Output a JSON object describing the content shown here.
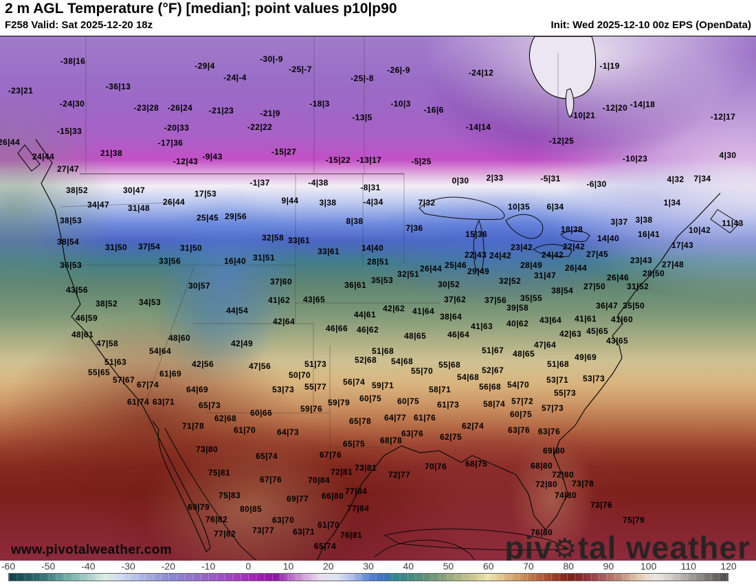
{
  "header": {
    "title": "2 m AGL Temperature (°F) [median]; point values p10|p90",
    "valid": "F258 Valid: Sat 2025-12-20 18z",
    "init": "Init: Wed 2025-12-10 00z EPS (OpenData)"
  },
  "watermark": {
    "site": "www.pivotalweather.com",
    "brand_p1": "piv",
    "brand_p2": "tal weather"
  },
  "colorbar": {
    "ticks": [
      "-60",
      "-50",
      "-40",
      "-30",
      "-20",
      "-10",
      "0",
      "10",
      "20",
      "30",
      "40",
      "50",
      "60",
      "70",
      "80",
      "90",
      "100",
      "110",
      "120"
    ],
    "stops": [
      [
        -60,
        "#0e3f4a"
      ],
      [
        -52,
        "#2e6e74"
      ],
      [
        -46,
        "#6aa8a4"
      ],
      [
        -40,
        "#a7d0c9"
      ],
      [
        -36,
        "#dcebe4"
      ],
      [
        -32,
        "#cfd9ee"
      ],
      [
        -26,
        "#a9b2e3"
      ],
      [
        -20,
        "#8b8ad5"
      ],
      [
        -14,
        "#9272cc"
      ],
      [
        -8,
        "#9c56c5"
      ],
      [
        -2,
        "#a637bf"
      ],
      [
        3,
        "#a21cb4"
      ],
      [
        7,
        "#8f14a6"
      ],
      [
        10,
        "#b45fc6"
      ],
      [
        14,
        "#d3a5dc"
      ],
      [
        18,
        "#e9dced"
      ],
      [
        22,
        "#dfe3f1"
      ],
      [
        26,
        "#aebfe8"
      ],
      [
        30,
        "#5b82d5"
      ],
      [
        34,
        "#3a6fc3"
      ],
      [
        36,
        "#2f8496"
      ],
      [
        40,
        "#3d8a80"
      ],
      [
        44,
        "#5b9077"
      ],
      [
        48,
        "#7f9d78"
      ],
      [
        52,
        "#a8b183"
      ],
      [
        56,
        "#c9c68e"
      ],
      [
        60,
        "#ece4ab"
      ],
      [
        63,
        "#e3c88f"
      ],
      [
        66,
        "#d6a96f"
      ],
      [
        69,
        "#c98a55"
      ],
      [
        72,
        "#b96a40"
      ],
      [
        75,
        "#a84c30"
      ],
      [
        78,
        "#942f22"
      ],
      [
        81,
        "#7c1f18"
      ],
      [
        84,
        "#8c2f33"
      ],
      [
        87,
        "#a04a52"
      ],
      [
        90,
        "#b06a62"
      ],
      [
        93,
        "#c08a78"
      ],
      [
        96,
        "#d8b49c"
      ],
      [
        99,
        "#e8d6c2"
      ],
      [
        102,
        "#eae6e0"
      ],
      [
        106,
        "#cfcbc6"
      ],
      [
        110,
        "#a8a4a0"
      ],
      [
        115,
        "#7a7672"
      ],
      [
        120,
        "#4e4a48"
      ]
    ]
  },
  "map": {
    "point_values": [
      [
        106,
        88,
        "-38|16"
      ],
      [
        30,
        131,
        "-23|21"
      ],
      [
        172,
        125,
        "-36|13"
      ],
      [
        105,
        150,
        "-24|30"
      ],
      [
        213,
        156,
        "-23|28"
      ],
      [
        262,
        156,
        "-26|24"
      ],
      [
        101,
        190,
        "-15|33"
      ],
      [
        257,
        185,
        "-20|33"
      ],
      [
        248,
        207,
        "-17|36"
      ],
      [
        13,
        206,
        "26|44"
      ],
      [
        162,
        222,
        "21|38"
      ],
      [
        63,
        227,
        "24|44"
      ],
      [
        270,
        234,
        "-12|43"
      ],
      [
        99,
        245,
        "27|47"
      ],
      [
        298,
        95,
        "-29|4"
      ],
      [
        395,
        85,
        "-30|-9"
      ],
      [
        342,
        112,
        "-24|-4"
      ],
      [
        437,
        100,
        "-25|-7"
      ],
      [
        527,
        113,
        "-25|-8"
      ],
      [
        465,
        150,
        "-18|3"
      ],
      [
        322,
        160,
        "-21|23"
      ],
      [
        393,
        164,
        "-21|9"
      ],
      [
        527,
        170,
        "-13|5"
      ],
      [
        378,
        184,
        "-22|22"
      ],
      [
        413,
        220,
        "-15|27"
      ],
      [
        309,
        227,
        "-9|43"
      ],
      [
        492,
        232,
        "-15|22"
      ],
      [
        537,
        232,
        "-13|17"
      ],
      [
        580,
        101,
        "-26|-9"
      ],
      [
        700,
        105,
        "-24|12"
      ],
      [
        583,
        150,
        "-10|3"
      ],
      [
        631,
        159,
        "-16|6"
      ],
      [
        696,
        184,
        "-14|14"
      ],
      [
        817,
        204,
        "-12|25"
      ],
      [
        613,
        234,
        "-5|25"
      ],
      [
        887,
        95,
        "-1|19"
      ],
      [
        848,
        167,
        "-10|21"
      ],
      [
        895,
        156,
        "-12|20"
      ],
      [
        935,
        151,
        "-14|18"
      ],
      [
        1052,
        169,
        "-12|17"
      ],
      [
        924,
        230,
        "-10|23"
      ],
      [
        1059,
        225,
        "4|30"
      ],
      [
        112,
        276,
        "38|52"
      ],
      [
        195,
        276,
        "30|47"
      ],
      [
        143,
        297,
        "34|47"
      ],
      [
        202,
        302,
        "31|48"
      ],
      [
        253,
        293,
        "26|44"
      ],
      [
        103,
        320,
        "38|53"
      ],
      [
        99,
        351,
        "38|54"
      ],
      [
        169,
        359,
        "31|50"
      ],
      [
        217,
        358,
        "37|54"
      ],
      [
        278,
        360,
        "31|50"
      ],
      [
        247,
        379,
        "33|56"
      ],
      [
        103,
        385,
        "36|53"
      ],
      [
        112,
        421,
        "43|56"
      ],
      [
        155,
        441,
        "38|52"
      ],
      [
        218,
        439,
        "34|53"
      ],
      [
        290,
        415,
        "30|57"
      ],
      [
        299,
        281,
        "17|53"
      ],
      [
        378,
        265,
        "-1|37"
      ],
      [
        463,
        265,
        "-4|38"
      ],
      [
        539,
        272,
        "-8|31"
      ],
      [
        422,
        291,
        "9|44"
      ],
      [
        477,
        294,
        "3|38"
      ],
      [
        543,
        293,
        "-4|34"
      ],
      [
        302,
        316,
        "25|45"
      ],
      [
        343,
        314,
        "29|56"
      ],
      [
        516,
        321,
        "8|38"
      ],
      [
        397,
        345,
        "32|58"
      ],
      [
        435,
        349,
        "33|61"
      ],
      [
        478,
        365,
        "33|61"
      ],
      [
        542,
        360,
        "14|40"
      ],
      [
        384,
        374,
        "31|51"
      ],
      [
        342,
        379,
        "16|40"
      ],
      [
        550,
        380,
        "28|51"
      ],
      [
        409,
        409,
        "37|60"
      ],
      [
        406,
        436,
        "41|62"
      ],
      [
        457,
        435,
        "43|65"
      ],
      [
        517,
        414,
        "36|61"
      ],
      [
        556,
        407,
        "35|53"
      ],
      [
        345,
        451,
        "44|54"
      ],
      [
        670,
        262,
        "0|30"
      ],
      [
        720,
        258,
        "2|33"
      ],
      [
        801,
        259,
        "-5|31"
      ],
      [
        621,
        294,
        "7|32"
      ],
      [
        755,
        300,
        "10|35"
      ],
      [
        808,
        300,
        "6|34"
      ],
      [
        603,
        331,
        "7|36"
      ],
      [
        693,
        340,
        "15|36"
      ],
      [
        832,
        333,
        "18|38"
      ],
      [
        759,
        359,
        "23|42"
      ],
      [
        835,
        358,
        "22|42"
      ],
      [
        692,
        370,
        "22|43"
      ],
      [
        728,
        371,
        "24|42"
      ],
      [
        804,
        370,
        "24|42"
      ],
      [
        773,
        385,
        "28|49"
      ],
      [
        663,
        385,
        "25|46"
      ],
      [
        627,
        390,
        "26|44"
      ],
      [
        696,
        394,
        "29|49"
      ],
      [
        594,
        398,
        "32|51"
      ],
      [
        793,
        400,
        "31|47"
      ],
      [
        838,
        389,
        "26|44"
      ],
      [
        742,
        408,
        "32|52"
      ],
      [
        653,
        413,
        "30|52"
      ],
      [
        662,
        435,
        "37|62"
      ],
      [
        721,
        436,
        "37|56"
      ],
      [
        773,
        433,
        "35|55"
      ],
      [
        818,
        422,
        "38|54"
      ],
      [
        753,
        447,
        "39|58"
      ],
      [
        573,
        448,
        "42|62"
      ],
      [
        616,
        452,
        "41|64"
      ],
      [
        868,
        267,
        "-6|30"
      ],
      [
        983,
        260,
        "4|32"
      ],
      [
        1022,
        259,
        "7|34"
      ],
      [
        978,
        294,
        "1|34"
      ],
      [
        901,
        322,
        "3|37"
      ],
      [
        937,
        319,
        "3|38"
      ],
      [
        1066,
        324,
        "11|43"
      ],
      [
        1018,
        334,
        "10|42"
      ],
      [
        944,
        340,
        "16|41"
      ],
      [
        885,
        346,
        "14|40"
      ],
      [
        993,
        356,
        "17|43"
      ],
      [
        869,
        369,
        "27|45"
      ],
      [
        933,
        378,
        "23|43"
      ],
      [
        979,
        384,
        "27|48"
      ],
      [
        951,
        397,
        "28|50"
      ],
      [
        899,
        403,
        "26|46"
      ],
      [
        865,
        416,
        "27|50"
      ],
      [
        928,
        416,
        "31|52"
      ],
      [
        883,
        444,
        "36|47"
      ],
      [
        922,
        444,
        "35|50"
      ],
      [
        126,
        462,
        "46|59"
      ],
      [
        120,
        486,
        "48|61"
      ],
      [
        156,
        499,
        "47|58"
      ],
      [
        261,
        491,
        "48|60"
      ],
      [
        233,
        510,
        "54|64"
      ],
      [
        168,
        526,
        "51|63"
      ],
      [
        144,
        541,
        "55|65"
      ],
      [
        248,
        543,
        "61|69"
      ],
      [
        180,
        552,
        "57|67"
      ],
      [
        215,
        559,
        "67|74"
      ],
      [
        201,
        584,
        "61|74"
      ],
      [
        238,
        584,
        "63|71"
      ],
      [
        287,
        566,
        "64|69"
      ],
      [
        281,
        619,
        "71|78"
      ],
      [
        305,
        589,
        "65|73"
      ],
      [
        413,
        467,
        "42|64"
      ],
      [
        531,
        457,
        "44|61"
      ],
      [
        490,
        477,
        "46|66"
      ],
      [
        535,
        479,
        "46|62"
      ],
      [
        352,
        499,
        "42|49"
      ],
      [
        295,
        529,
        "42|56"
      ],
      [
        378,
        532,
        "47|56"
      ],
      [
        459,
        529,
        "51|73"
      ],
      [
        532,
        523,
        "52|68"
      ],
      [
        436,
        545,
        "50|70"
      ],
      [
        515,
        555,
        "56|74"
      ],
      [
        459,
        562,
        "55|77"
      ],
      [
        412,
        566,
        "53|73"
      ],
      [
        493,
        585,
        "59|79"
      ],
      [
        539,
        579,
        "60|75"
      ],
      [
        453,
        594,
        "59|76"
      ],
      [
        380,
        600,
        "60|66"
      ],
      [
        328,
        608,
        "62|68"
      ],
      [
        524,
        612,
        "65|78"
      ],
      [
        356,
        625,
        "61|70"
      ],
      [
        419,
        628,
        "64|73"
      ],
      [
        515,
        645,
        "65|75"
      ],
      [
        656,
        460,
        "38|64"
      ],
      [
        701,
        474,
        "41|63"
      ],
      [
        753,
        470,
        "40|62"
      ],
      [
        801,
        465,
        "43|64"
      ],
      [
        830,
        485,
        "42|63"
      ],
      [
        604,
        488,
        "48|65"
      ],
      [
        667,
        486,
        "46|64"
      ],
      [
        793,
        501,
        "47|64"
      ],
      [
        717,
        509,
        "51|67"
      ],
      [
        762,
        514,
        "48|65"
      ],
      [
        557,
        510,
        "51|68"
      ],
      [
        585,
        525,
        "54|68"
      ],
      [
        812,
        529,
        "51|68"
      ],
      [
        654,
        530,
        "55|68"
      ],
      [
        614,
        539,
        "55|70"
      ],
      [
        717,
        538,
        "52|67"
      ],
      [
        681,
        548,
        "54|68"
      ],
      [
        811,
        552,
        "53|71"
      ],
      [
        754,
        559,
        "54|70"
      ],
      [
        713,
        562,
        "56|68"
      ],
      [
        640,
        566,
        "58|71"
      ],
      [
        557,
        560,
        "59|71"
      ],
      [
        822,
        571,
        "55|73"
      ],
      [
        760,
        583,
        "57|72"
      ],
      [
        594,
        583,
        "60|75"
      ],
      [
        652,
        588,
        "61|73"
      ],
      [
        719,
        587,
        "58|74"
      ],
      [
        804,
        593,
        "57|73"
      ],
      [
        758,
        602,
        "60|75"
      ],
      [
        575,
        607,
        "64|77"
      ],
      [
        618,
        607,
        "61|76"
      ],
      [
        688,
        619,
        "62|74"
      ],
      [
        755,
        625,
        "63|76"
      ],
      [
        799,
        627,
        "63|76"
      ],
      [
        600,
        630,
        "63|76"
      ],
      [
        656,
        635,
        "62|75"
      ],
      [
        569,
        640,
        "68|78"
      ],
      [
        852,
        463,
        "41|61"
      ],
      [
        905,
        464,
        "41|60"
      ],
      [
        869,
        481,
        "45|65"
      ],
      [
        898,
        495,
        "43|65"
      ],
      [
        852,
        519,
        "49|69"
      ],
      [
        864,
        550,
        "53|73"
      ],
      [
        301,
        653,
        "73|80"
      ],
      [
        388,
        663,
        "65|74"
      ],
      [
        481,
        661,
        "67|76"
      ],
      [
        319,
        687,
        "75|81"
      ],
      [
        394,
        697,
        "67|76"
      ],
      [
        497,
        686,
        "72|81"
      ],
      [
        532,
        680,
        "73|81"
      ],
      [
        464,
        698,
        "70|84"
      ],
      [
        334,
        720,
        "75|83"
      ],
      [
        433,
        725,
        "69|77"
      ],
      [
        484,
        721,
        "66|80"
      ],
      [
        518,
        714,
        "77|84"
      ],
      [
        521,
        739,
        "77|84"
      ],
      [
        289,
        737,
        "69|79"
      ],
      [
        315,
        755,
        "76|82"
      ],
      [
        365,
        740,
        "80|85"
      ],
      [
        412,
        756,
        "63|70"
      ],
      [
        478,
        763,
        "61|70"
      ],
      [
        327,
        776,
        "77|82"
      ],
      [
        383,
        771,
        "73|77"
      ],
      [
        442,
        773,
        "63|71"
      ],
      [
        511,
        778,
        "76|81"
      ],
      [
        473,
        794,
        "65|74"
      ],
      [
        581,
        690,
        "72|77"
      ],
      [
        634,
        678,
        "70|76"
      ],
      [
        693,
        674,
        "68|75"
      ],
      [
        806,
        655,
        "69|80"
      ],
      [
        788,
        677,
        "68|80"
      ],
      [
        819,
        690,
        "72|80"
      ],
      [
        795,
        704,
        "72|80"
      ],
      [
        823,
        720,
        "74|80"
      ],
      [
        788,
        774,
        "76|80"
      ],
      [
        848,
        703,
        "73|78"
      ],
      [
        875,
        734,
        "73|76"
      ],
      [
        922,
        756,
        "75|79"
      ]
    ]
  }
}
